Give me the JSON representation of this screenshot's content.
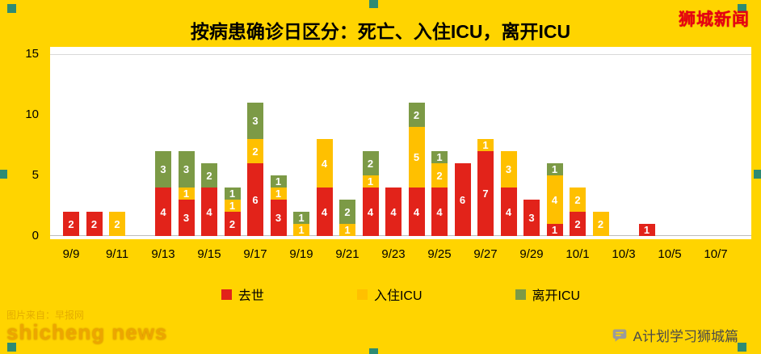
{
  "title": "按病患确诊日区分：死亡、入住ICU，离开ICU",
  "logo": "狮城新闻",
  "watermark": {
    "source_line": "图片来自：早报网",
    "brand": "shicheng news"
  },
  "footer_right": "A计划学习狮城篇",
  "colors": {
    "background": "#FFD400",
    "died": "#E2231A",
    "icu_in": "#FFC000",
    "icu_out": "#7C9A46",
    "handle": "#2E8B73",
    "logo_red": "#E60012"
  },
  "chart_data": {
    "type": "bar",
    "stacked": true,
    "title": "按病患确诊日区分：死亡、入住ICU，离开ICU",
    "categories": [
      "9/9",
      "9/10",
      "9/11",
      "9/12",
      "9/13",
      "9/14",
      "9/15",
      "9/16",
      "9/17",
      "9/18",
      "9/19",
      "9/20",
      "9/21",
      "9/22",
      "9/23",
      "9/24",
      "9/25",
      "9/26",
      "9/27",
      "9/28",
      "9/29",
      "9/30",
      "10/1",
      "10/2",
      "10/3",
      "10/4",
      "10/5",
      "10/6",
      "10/7"
    ],
    "x_tick_labels": [
      "9/9",
      "9/11",
      "9/13",
      "9/15",
      "9/17",
      "9/19",
      "9/21",
      "9/23",
      "9/25",
      "9/27",
      "9/29",
      "10/1",
      "10/3",
      "10/5",
      "10/7"
    ],
    "ylim": [
      0,
      15
    ],
    "yticks": [
      0,
      5,
      10,
      15
    ],
    "grid": false,
    "legend_position": "bottom",
    "series": [
      {
        "name": "去世",
        "color": "#E2231A",
        "values": [
          2,
          2,
          0,
          0,
          4,
          3,
          4,
          2,
          6,
          3,
          0,
          4,
          0,
          4,
          4,
          4,
          4,
          6,
          7,
          4,
          3,
          1,
          2,
          0,
          0,
          1,
          0,
          0,
          0
        ]
      },
      {
        "name": "入住ICU",
        "color": "#FFC000",
        "values": [
          0,
          0,
          2,
          0,
          0,
          1,
          0,
          1,
          2,
          1,
          1,
          4,
          1,
          1,
          0,
          5,
          2,
          0,
          1,
          3,
          0,
          4,
          2,
          2,
          0,
          0,
          0,
          0,
          0
        ]
      },
      {
        "name": "离开ICU",
        "color": "#7C9A46",
        "values": [
          0,
          0,
          0,
          0,
          3,
          3,
          2,
          1,
          3,
          1,
          1,
          0,
          2,
          2,
          0,
          2,
          1,
          0,
          0,
          0,
          0,
          1,
          0,
          0,
          0,
          0,
          0,
          0,
          0
        ]
      }
    ]
  }
}
